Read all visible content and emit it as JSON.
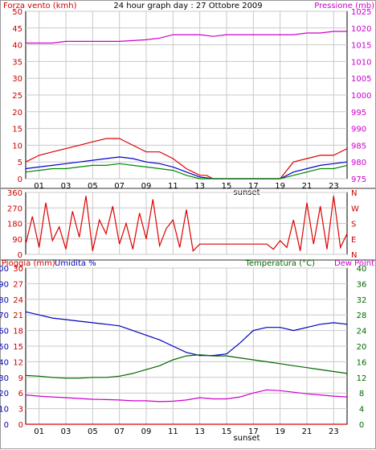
{
  "chart_data": [
    {
      "type": "line",
      "title": "24 hour graph day : 27 Ottobre 2009",
      "left_axis_label": "Forza vento (kmh)",
      "right_axis_label": "Pressione (mb)",
      "left_ylim": [
        0,
        50
      ],
      "left_ticks": [
        "0",
        "5",
        "10",
        "15",
        "20",
        "25",
        "30",
        "35",
        "40",
        "45",
        "50"
      ],
      "right_ylim": [
        975,
        1025
      ],
      "right_ticks": [
        "975",
        "980",
        "985",
        "990",
        "995",
        "1000",
        "1005",
        "1010",
        "1015",
        "1020",
        "1025"
      ],
      "x_ticks": [
        "01",
        "03",
        "05",
        "07",
        "09",
        "11",
        "13",
        "15",
        "17",
        "19",
        "21",
        "23"
      ],
      "x_extra_label": "sunset",
      "grid": true,
      "series": [
        {
          "name": "Pressione (mb)",
          "axis": "right",
          "color": "#cc00cc",
          "x": [
            0,
            2,
            3,
            7,
            9,
            10,
            11,
            12,
            13,
            14,
            15,
            16,
            17,
            18,
            19,
            20,
            21,
            22,
            23,
            24
          ],
          "y": [
            1015.5,
            1015.5,
            1016,
            1016,
            1016.5,
            1017,
            1018,
            1018,
            1018,
            1017.5,
            1018,
            1018,
            1018,
            1018,
            1018,
            1018,
            1018.5,
            1018.5,
            1019,
            1019
          ]
        },
        {
          "color": "#dd0000",
          "axis": "left",
          "x": [
            0,
            1,
            2,
            3,
            4,
            5,
            6,
            7,
            8,
            9,
            10,
            11,
            12,
            12.5,
            13,
            13.5,
            14,
            19,
            20,
            21,
            22,
            23,
            24
          ],
          "y": [
            5,
            7,
            8,
            9,
            10,
            11,
            12,
            12,
            10,
            8,
            8,
            6,
            3,
            2,
            1,
            1,
            0,
            0,
            5,
            6,
            7,
            7,
            9
          ]
        },
        {
          "color": "#0000cc",
          "axis": "left",
          "x": [
            0,
            1,
            2,
            3,
            4,
            5,
            6,
            7,
            8,
            9,
            10,
            11,
            12,
            13,
            14,
            19,
            20,
            21,
            22,
            23,
            24
          ],
          "y": [
            3,
            3.5,
            4,
            4.5,
            5,
            5.5,
            6,
            6.5,
            6,
            5,
            4.5,
            3.5,
            2,
            0.5,
            0,
            0,
            2,
            3,
            4,
            4.5,
            5
          ]
        },
        {
          "color": "#008800",
          "axis": "left",
          "x": [
            0,
            1,
            2,
            3,
            4,
            5,
            6,
            7,
            8,
            9,
            10,
            11,
            12,
            13,
            14,
            19,
            20,
            21,
            22,
            23,
            24
          ],
          "y": [
            2,
            2.5,
            3,
            3,
            3.5,
            4,
            4,
            4.5,
            4,
            3.5,
            3,
            2.5,
            1,
            0,
            0,
            0,
            1,
            2,
            3,
            3,
            4
          ]
        }
      ]
    },
    {
      "type": "line",
      "title": "",
      "ylim": [
        0,
        360
      ],
      "left_ticks": [
        "0",
        "90",
        "180",
        "270",
        "360"
      ],
      "right_ticks": [
        "N",
        "E",
        "S",
        "W",
        "N"
      ],
      "series": [
        {
          "color": "#dd0000",
          "x": [
            0,
            0.5,
            1,
            1.5,
            2,
            2.5,
            3,
            3.5,
            4,
            4.5,
            5,
            5.5,
            6,
            6.5,
            7,
            7.5,
            8,
            8.5,
            9,
            9.5,
            10,
            10.5,
            11,
            11.5,
            12,
            12.5,
            13,
            13.5,
            14,
            18,
            18.5,
            19,
            19.5,
            20,
            20.5,
            21,
            21.5,
            22,
            22.5,
            23,
            23.5,
            24
          ],
          "y": [
            60,
            220,
            40,
            300,
            80,
            160,
            30,
            250,
            100,
            340,
            20,
            200,
            120,
            280,
            60,
            180,
            30,
            240,
            90,
            320,
            50,
            150,
            200,
            40,
            260,
            20,
            60,
            60,
            60,
            60,
            30,
            80,
            40,
            200,
            20,
            300,
            60,
            280,
            30,
            340,
            40,
            120
          ]
        }
      ]
    },
    {
      "type": "line",
      "title": "",
      "left_axis_label": "Pioggia (mm)",
      "left_axis_label2": "Umidita %",
      "right_axis_label": "Temperatura (°C)",
      "right_axis_label2": "Dew Point",
      "rain_ticks": [
        "0",
        "3",
        "6",
        "9",
        "12",
        "15",
        "18",
        "21",
        "24",
        "27",
        "30"
      ],
      "humidity_ticks": [
        "0",
        "10",
        "20",
        "30",
        "40",
        "50",
        "60",
        "70",
        "80",
        "90",
        "100"
      ],
      "right_ticks": [
        "0",
        "4",
        "8",
        "12",
        "16",
        "20",
        "24",
        "28",
        "32",
        "36",
        "40"
      ],
      "x_ticks": [
        "01",
        "03",
        "05",
        "07",
        "09",
        "11",
        "13",
        "15",
        "17",
        "19",
        "21",
        "23"
      ],
      "x_extra_label": "sunset",
      "grid": true,
      "series": [
        {
          "name": "Umidita %",
          "axis": "humidity",
          "color": "#0000bb",
          "x": [
            0,
            1,
            2,
            3,
            4,
            5,
            6,
            7,
            8,
            9,
            10,
            11,
            12,
            13,
            14,
            15,
            16,
            17,
            18,
            19,
            20,
            21,
            22,
            23,
            24
          ],
          "y": [
            72,
            70,
            68,
            67,
            66,
            65,
            64,
            63,
            60,
            57,
            54,
            50,
            46,
            44,
            44,
            45,
            52,
            60,
            62,
            62,
            60,
            62,
            64,
            65,
            64
          ]
        },
        {
          "name": "Temperatura (°C)",
          "axis": "right",
          "color": "#006600",
          "x": [
            0,
            1,
            2,
            3,
            4,
            5,
            6,
            7,
            8,
            9,
            10,
            11,
            12,
            13,
            14,
            15,
            16,
            17,
            18,
            19,
            20,
            21,
            22,
            23,
            24
          ],
          "y": [
            12.5,
            12.3,
            12,
            11.8,
            11.8,
            12,
            12,
            12.3,
            13,
            14,
            15,
            16.5,
            17.5,
            17.8,
            17.5,
            17.5,
            17,
            16.5,
            16,
            15.5,
            15,
            14.5,
            14,
            13.5,
            13
          ]
        },
        {
          "name": "Dew Point",
          "axis": "right",
          "color": "#cc00cc",
          "x": [
            0,
            1,
            2,
            3,
            4,
            5,
            6,
            7,
            8,
            9,
            10,
            11,
            12,
            13,
            14,
            15,
            16,
            17,
            18,
            19,
            20,
            21,
            22,
            23,
            24
          ],
          "y": [
            7.5,
            7.2,
            7,
            6.8,
            6.6,
            6.4,
            6.3,
            6.2,
            6,
            6,
            5.8,
            5.9,
            6.2,
            6.8,
            6.5,
            6.5,
            7,
            8,
            8.8,
            8.6,
            8.2,
            7.8,
            7.5,
            7.2,
            7
          ]
        },
        {
          "name": "Pioggia (mm)",
          "axis": "rain",
          "color": "#dd0000",
          "x": [
            0,
            24
          ],
          "y": [
            0,
            0
          ]
        }
      ]
    }
  ]
}
